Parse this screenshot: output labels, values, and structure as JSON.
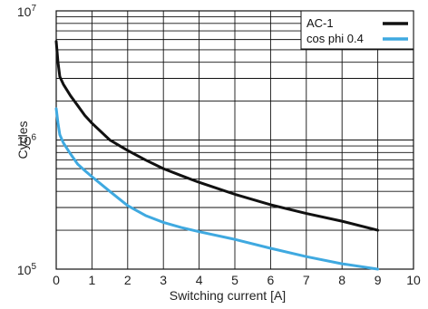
{
  "chart_data": {
    "type": "line",
    "title": "",
    "xlabel": "Switching current [A]",
    "ylabel": "Cycles",
    "x_scale": "linear",
    "y_scale": "log",
    "xlim": [
      0,
      10
    ],
    "ylim": [
      100000,
      10000000
    ],
    "x_ticks": [
      0,
      1,
      2,
      3,
      4,
      5,
      6,
      7,
      8,
      9,
      10
    ],
    "y_ticks": [
      {
        "value": 100000,
        "base": "10",
        "exp": "5"
      },
      {
        "value": 1000000,
        "base": "10",
        "exp": "6"
      },
      {
        "value": 10000000,
        "base": "10",
        "exp": "7"
      }
    ],
    "grid": true,
    "legend": "top-right",
    "series": [
      {
        "name": "AC-1",
        "color": "#111111",
        "points": [
          [
            0,
            5800000
          ],
          [
            0.05,
            4000000
          ],
          [
            0.1,
            3100000
          ],
          [
            0.2,
            2700000
          ],
          [
            0.4,
            2200000
          ],
          [
            0.6,
            1850000
          ],
          [
            0.8,
            1550000
          ],
          [
            1.0,
            1350000
          ],
          [
            1.5,
            1000000
          ],
          [
            2.0,
            830000
          ],
          [
            2.5,
            700000
          ],
          [
            3.0,
            600000
          ],
          [
            3.5,
            530000
          ],
          [
            4.0,
            470000
          ],
          [
            5.0,
            380000
          ],
          [
            6.0,
            315000
          ],
          [
            7.0,
            270000
          ],
          [
            8.0,
            235000
          ],
          [
            9.0,
            200000
          ]
        ]
      },
      {
        "name": "cos phi 0.4",
        "color": "#3fa9e0",
        "points": [
          [
            0,
            1750000
          ],
          [
            0.05,
            1350000
          ],
          [
            0.1,
            1100000
          ],
          [
            0.2,
            950000
          ],
          [
            0.4,
            780000
          ],
          [
            0.6,
            650000
          ],
          [
            0.8,
            580000
          ],
          [
            1.0,
            520000
          ],
          [
            1.5,
            400000
          ],
          [
            2.0,
            310000
          ],
          [
            2.5,
            260000
          ],
          [
            3.0,
            230000
          ],
          [
            3.5,
            210000
          ],
          [
            4.0,
            195000
          ],
          [
            5.0,
            170000
          ],
          [
            6.0,
            145000
          ],
          [
            7.0,
            125000
          ],
          [
            8.0,
            110000
          ],
          [
            9.0,
            100000
          ]
        ]
      }
    ]
  }
}
